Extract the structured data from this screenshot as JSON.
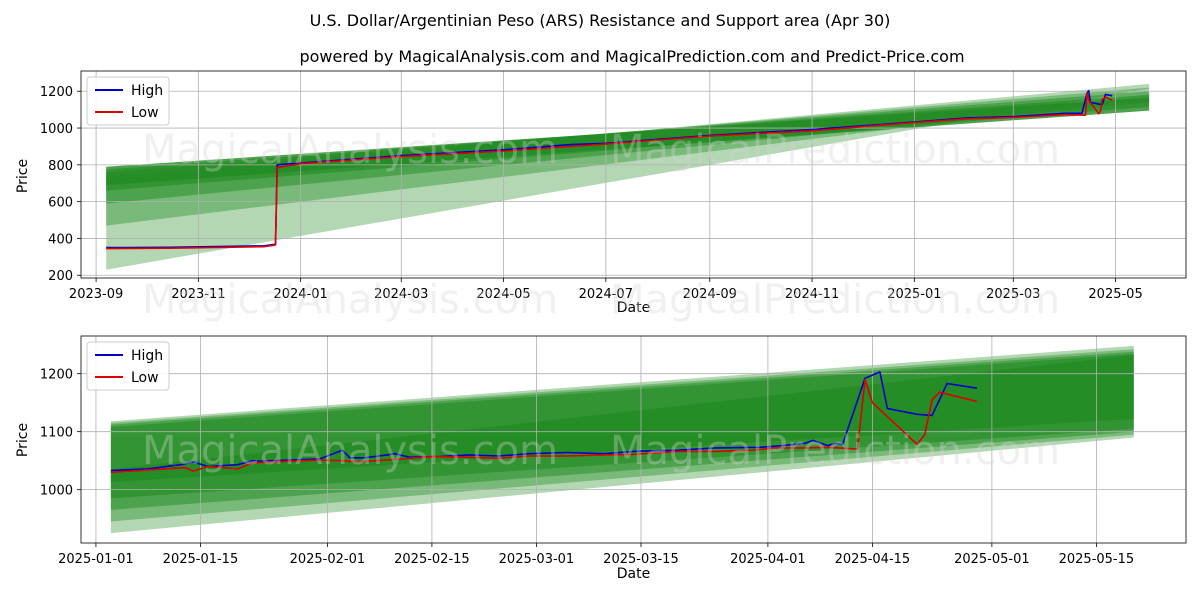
{
  "title": "U.S. Dollar/Argentinian Peso (ARS) Resistance and Support area (Apr 30)",
  "subtitle": "powered by MagicalAnalysis.com and MagicalPrediction.com and Predict-Price.com",
  "watermarks": [
    "MagicalAnalysis.com",
    "MagicalPrediction.com"
  ],
  "colors": {
    "high": "#0000cc",
    "low": "#dd0000",
    "band": "#228b22"
  },
  "chart_data": [
    {
      "type": "line",
      "title": "",
      "xlabel": "Date",
      "ylabel": "Price",
      "xlim": [
        "2023-08-23",
        "2025-06-12"
      ],
      "ylim": [
        185,
        1310
      ],
      "grid": true,
      "legend": "top-left",
      "x_ticks": [
        "2023-09",
        "2023-11",
        "2024-01",
        "2024-03",
        "2024-05",
        "2024-07",
        "2024-09",
        "2024-11",
        "2025-01",
        "2025-03",
        "2025-05"
      ],
      "y_ticks": [
        200,
        400,
        600,
        800,
        1000,
        1200
      ],
      "band": {
        "x_start": "2023-09-07",
        "x_end": "2025-05-21",
        "layers": [
          [
            230,
            1215,
            720,
            1240
          ],
          [
            470,
            1165,
            740,
            1220
          ],
          [
            590,
            1140,
            760,
            1200
          ],
          [
            660,
            1115,
            775,
            1180
          ],
          [
            690,
            1095,
            790,
            1165
          ]
        ]
      },
      "series": [
        {
          "name": "High",
          "x": [
            "2023-09-07",
            "2023-10-15",
            "2023-12-10",
            "2023-12-17",
            "2023-12-18",
            "2024-01-01",
            "2024-03-01",
            "2024-05-01",
            "2024-06-10",
            "2024-07-01",
            "2024-09-01",
            "2024-11-01",
            "2025-01-01",
            "2025-02-01",
            "2025-03-01",
            "2025-04-01",
            "2025-04-11",
            "2025-04-14",
            "2025-04-15",
            "2025-04-16",
            "2025-04-21",
            "2025-04-23",
            "2025-04-25",
            "2025-04-29"
          ],
          "values": [
            350,
            352,
            360,
            368,
            800,
            810,
            850,
            882,
            910,
            917,
            960,
            992,
            1033,
            1055,
            1062,
            1080,
            1080,
            1192,
            1203,
            1140,
            1130,
            1128,
            1183,
            1175
          ]
        },
        {
          "name": "Low",
          "x": [
            "2023-09-07",
            "2023-10-15",
            "2023-12-10",
            "2023-12-17",
            "2023-12-18",
            "2024-01-01",
            "2024-03-01",
            "2024-05-01",
            "2024-07-01",
            "2024-09-01",
            "2024-11-01",
            "2025-01-01",
            "2025-02-01",
            "2025-03-01",
            "2025-04-01",
            "2025-04-13",
            "2025-04-14",
            "2025-04-15",
            "2025-04-21",
            "2025-04-22",
            "2025-04-23",
            "2025-04-25",
            "2025-04-29"
          ],
          "values": [
            345,
            347,
            355,
            365,
            785,
            806,
            845,
            875,
            913,
            957,
            985,
            1030,
            1050,
            1058,
            1073,
            1070,
            1190,
            1150,
            1078,
            1095,
            1155,
            1168,
            1152
          ]
        }
      ]
    },
    {
      "type": "line",
      "title": "",
      "xlabel": "Date",
      "ylabel": "Price",
      "xlim": [
        "2024-12-30",
        "2025-05-27"
      ],
      "ylim": [
        908,
        1265
      ],
      "grid": true,
      "legend": "top-left",
      "x_ticks": [
        "2025-01-01",
        "2025-01-15",
        "2025-02-01",
        "2025-02-15",
        "2025-03-01",
        "2025-03-15",
        "2025-04-01",
        "2025-04-15",
        "2025-05-01",
        "2025-05-15"
      ],
      "y_ticks": [
        1000,
        1100,
        1200
      ],
      "band": {
        "x_start": "2025-01-03",
        "x_end": "2025-05-20",
        "layers": [
          [
            925,
            1090,
            1118,
            1248
          ],
          [
            945,
            1095,
            1115,
            1242
          ],
          [
            965,
            1100,
            1112,
            1238
          ],
          [
            985,
            1105,
            1108,
            1234
          ],
          [
            1013,
            1122,
            1035,
            1232
          ]
        ]
      },
      "series": [
        {
          "name": "High",
          "x": [
            "2025-01-03",
            "2025-01-08",
            "2025-01-13",
            "2025-01-14",
            "2025-01-16",
            "2025-01-20",
            "2025-01-22",
            "2025-01-23",
            "2025-01-27",
            "2025-01-31",
            "2025-02-03",
            "2025-02-04",
            "2025-02-06",
            "2025-02-09",
            "2025-02-10",
            "2025-02-12",
            "2025-02-16",
            "2025-02-20",
            "2025-02-24",
            "2025-02-28",
            "2025-03-05",
            "2025-03-10",
            "2025-03-14",
            "2025-03-20",
            "2025-03-25",
            "2025-03-31",
            "2025-04-03",
            "2025-04-06",
            "2025-04-07",
            "2025-04-09",
            "2025-04-10",
            "2025-04-11",
            "2025-04-14",
            "2025-04-16",
            "2025-04-17",
            "2025-04-21",
            "2025-04-23",
            "2025-04-25",
            "2025-04-29"
          ],
          "values": [
            1033,
            1036,
            1044,
            1048,
            1040,
            1043,
            1050,
            1049,
            1051,
            1053,
            1068,
            1055,
            1055,
            1060,
            1062,
            1056,
            1057,
            1060,
            1058,
            1062,
            1064,
            1062,
            1066,
            1068,
            1072,
            1073,
            1076,
            1080,
            1085,
            1076,
            1080,
            1078,
            1192,
            1203,
            1140,
            1130,
            1128,
            1183,
            1175
          ]
        },
        {
          "name": "Low",
          "x": [
            "2025-01-03",
            "2025-01-08",
            "2025-01-13",
            "2025-01-14",
            "2025-01-16",
            "2025-01-20",
            "2025-01-22",
            "2025-01-23",
            "2025-01-27",
            "2025-01-31",
            "2025-02-03",
            "2025-02-05",
            "2025-02-10",
            "2025-02-15",
            "2025-02-20",
            "2025-02-24",
            "2025-02-28",
            "2025-03-05",
            "2025-03-10",
            "2025-03-14",
            "2025-03-20",
            "2025-03-25",
            "2025-03-30",
            "2025-04-02",
            "2025-04-06",
            "2025-04-09",
            "2025-04-13",
            "2025-04-14",
            "2025-04-15",
            "2025-04-21",
            "2025-04-22",
            "2025-04-23",
            "2025-04-24",
            "2025-04-29"
          ],
          "values": [
            1030,
            1034,
            1038,
            1032,
            1040,
            1036,
            1046,
            1047,
            1049,
            1051,
            1050,
            1048,
            1052,
            1057,
            1056,
            1054,
            1058,
            1058,
            1060,
            1061,
            1066,
            1066,
            1068,
            1072,
            1072,
            1073,
            1070,
            1190,
            1150,
            1078,
            1095,
            1155,
            1168,
            1152
          ]
        }
      ]
    }
  ]
}
